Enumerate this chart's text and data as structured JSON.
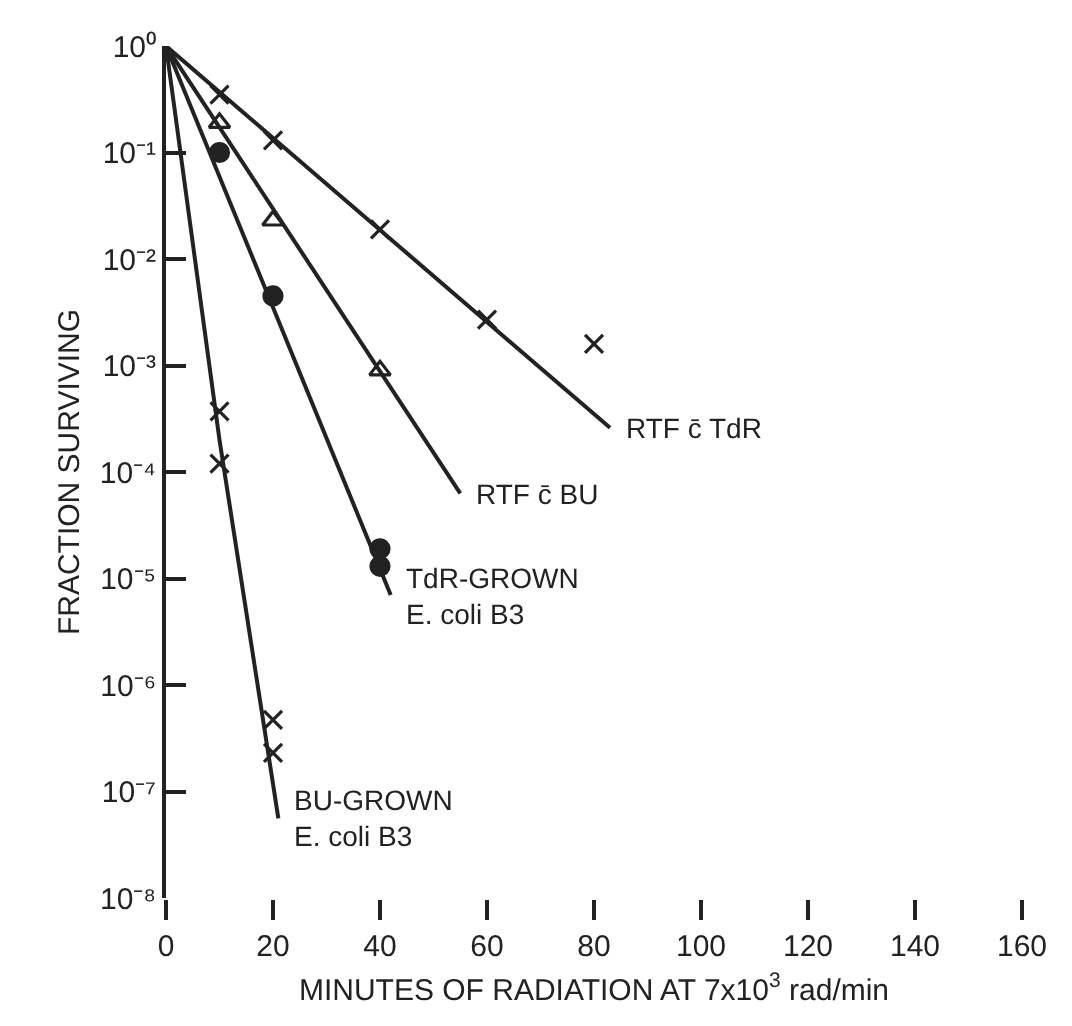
{
  "chart_data": {
    "type": "scatter",
    "xlabel": "MINUTES OF RADIATION AT 7x10$^{3}$ rad/min",
    "ylabel": "FRACTION SURVIVING",
    "xlim": [
      0,
      160
    ],
    "xticks": [
      0,
      20,
      40,
      60,
      80,
      100,
      120,
      140,
      160
    ],
    "ylim": [
      1e-08,
      1
    ],
    "log": true,
    "yticks": [
      {
        "value": 1,
        "label": "10⁰"
      },
      {
        "value": 0.1,
        "label": "10⁻¹"
      },
      {
        "value": 0.01,
        "label": "10⁻²"
      },
      {
        "value": 0.001,
        "label": "10⁻³"
      },
      {
        "value": 0.0001,
        "label": "10⁻⁴"
      },
      {
        "value": 1e-05,
        "label": "10⁻⁵"
      },
      {
        "value": 1e-06,
        "label": "10⁻⁶"
      },
      {
        "value": 1e-07,
        "label": "10⁻⁷"
      },
      {
        "value": 1e-08,
        "label": "10⁻⁸"
      }
    ],
    "legend": false,
    "series": [
      {
        "marker": "cross",
        "color": "#222222",
        "x": [
          10,
          20,
          40,
          60,
          80
        ],
        "values": [
          0.35,
          0.13,
          0.019,
          0.0027,
          0.0016
        ]
      },
      {
        "type": "line",
        "name": "RTF c̄ TdR",
        "color": "#222222",
        "line_style": "solid",
        "x": [
          0,
          83
        ],
        "values": [
          1,
          0.00026
        ]
      },
      {
        "marker": "triangle",
        "color": "#222222",
        "x": [
          10,
          20,
          40
        ],
        "values": [
          0.19,
          0.023,
          0.0009
        ]
      },
      {
        "type": "line",
        "name": "RTF c̄ BU",
        "color": "#222222",
        "line_style": "solid",
        "x": [
          0,
          55
        ],
        "values": [
          1,
          6.3e-05
        ]
      },
      {
        "marker": "circle",
        "color": "#222222",
        "x": [
          10,
          20,
          40,
          40
        ],
        "values": [
          0.1,
          0.0045,
          1.9e-05,
          1.3e-05
        ]
      },
      {
        "type": "line",
        "name": "TdR-GROWN\nE. coli B3",
        "color": "#222222",
        "line_style": "solid",
        "x": [
          0,
          42
        ],
        "values": [
          1,
          7e-06
        ]
      },
      {
        "marker": "cross",
        "color": "#222222",
        "x": [
          10,
          10,
          20,
          20
        ],
        "values": [
          0.00037,
          0.00012,
          4.7e-07,
          2.3e-07
        ]
      },
      {
        "type": "line",
        "name": "BU-GROWN\nE. coli B3",
        "color": "#222222",
        "line_style": "solid",
        "x": [
          0,
          10,
          21
        ],
        "values": [
          1,
          0.0002,
          5.6e-08
        ]
      }
    ]
  }
}
